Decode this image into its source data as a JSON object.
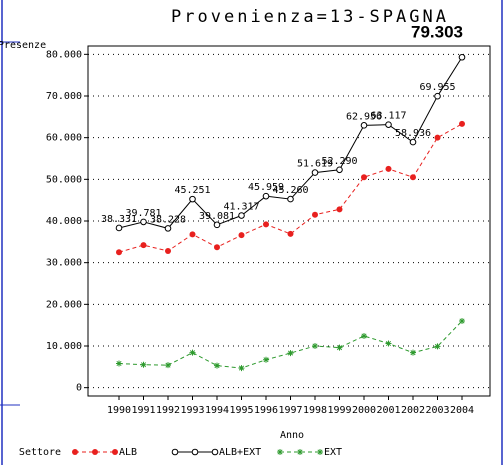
{
  "chart_data": {
    "type": "line",
    "title": "Provenienza=13-SPAGNA",
    "y_label": "Presenze",
    "x_label": "Anno",
    "legend_title": "Settore",
    "categories": [
      "1990",
      "1991",
      "1992",
      "1993",
      "1994",
      "1995",
      "1996",
      "1997",
      "1998",
      "1999",
      "2000",
      "2001",
      "2002",
      "2003",
      "2004"
    ],
    "series": [
      {
        "name": "ALB",
        "color": "#e8201e",
        "dash": true,
        "marker": "dot",
        "values": [
          32500,
          34200,
          32800,
          36800,
          33700,
          36600,
          39200,
          36900,
          41500,
          42800,
          50500,
          52500,
          50500,
          60000,
          63300
        ]
      },
      {
        "name": "ALB+EXT",
        "color": "#000000",
        "dash": false,
        "marker": "circle",
        "values": [
          38331,
          39781,
          38228,
          45251,
          39081,
          41317,
          45959,
          45260,
          51619,
          52290,
          62956,
          63117,
          58936,
          69955,
          79303
        ],
        "value_labels": [
          "38.331",
          "39.781",
          "38.228",
          "45.251",
          "39.081",
          "41.317",
          "45.959",
          "45.260",
          "51.619",
          "52.290",
          "62.956",
          "63.117",
          "58.936",
          "69.955",
          "79.303"
        ]
      },
      {
        "name": "EXT",
        "color": "#2e9a2e",
        "dash": true,
        "marker": "star",
        "values": [
          5800,
          5500,
          5400,
          8400,
          5300,
          4700,
          6700,
          8300,
          10000,
          9600,
          12400,
          10600,
          8400,
          9900,
          16000
        ]
      }
    ],
    "ylim": [
      -2000,
      82000
    ],
    "yticks": [
      0,
      {
        "value": 10000,
        "label": "10.000"
      },
      {
        "value": 20000,
        "label": "20.000"
      },
      {
        "value": 30000,
        "label": "30.000"
      },
      {
        "value": 40000,
        "label": "40.000"
      },
      {
        "value": 50000,
        "label": "50.000"
      },
      {
        "value": 60000,
        "label": "60.000"
      },
      {
        "value": 70000,
        "label": "70.000"
      },
      {
        "value": 80000,
        "label": "80.000"
      }
    ],
    "grid": true
  }
}
